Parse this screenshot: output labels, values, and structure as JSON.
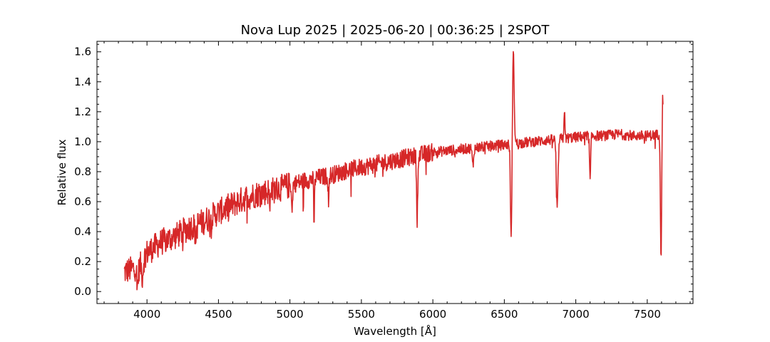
{
  "chart_data": {
    "type": "line",
    "title": "Nova Lup 2025 | 2025-06-20 | 00:36:25 | 2SPOT",
    "xlabel": "Wavelength [Å]",
    "ylabel": "Relative flux",
    "xlim": [
      3650,
      7820
    ],
    "ylim": [
      -0.08,
      1.67
    ],
    "x_ticks": [
      4000,
      4500,
      5000,
      5500,
      6000,
      6500,
      7000,
      7500
    ],
    "x_tick_labels": [
      "4000",
      "4500",
      "5000",
      "5500",
      "6000",
      "6500",
      "7000",
      "7500"
    ],
    "y_ticks": [
      0.0,
      0.2,
      0.4,
      0.6,
      0.8,
      1.0,
      1.2,
      1.4,
      1.6
    ],
    "y_tick_labels": [
      "0.0",
      "0.2",
      "0.4",
      "0.6",
      "0.8",
      "1.0",
      "1.2",
      "1.4",
      "1.6"
    ],
    "x_minor_step": 100,
    "y_minor_step": 0.05,
    "ticks_direction": "in",
    "ticks_on_all_sides": true,
    "grid": false,
    "legend": "none",
    "line_color": "#d62728",
    "series": [
      {
        "x_range": [
          3840,
          7610
        ],
        "continuum": [
          [
            3840,
            0.13
          ],
          [
            3950,
            0.17
          ],
          [
            4000,
            0.26
          ],
          [
            4100,
            0.33
          ],
          [
            4200,
            0.37
          ],
          [
            4300,
            0.43
          ],
          [
            4400,
            0.47
          ],
          [
            4500,
            0.53
          ],
          [
            4600,
            0.58
          ],
          [
            4700,
            0.63
          ],
          [
            4800,
            0.66
          ],
          [
            4900,
            0.68
          ],
          [
            5000,
            0.71
          ],
          [
            5100,
            0.74
          ],
          [
            5200,
            0.76
          ],
          [
            5300,
            0.78
          ],
          [
            5400,
            0.81
          ],
          [
            5500,
            0.83
          ],
          [
            5600,
            0.85
          ],
          [
            5700,
            0.87
          ],
          [
            5800,
            0.89
          ],
          [
            5900,
            0.91
          ],
          [
            6000,
            0.93
          ],
          [
            6100,
            0.94
          ],
          [
            6200,
            0.95
          ],
          [
            6300,
            0.96
          ],
          [
            6400,
            0.97
          ],
          [
            6500,
            0.98
          ],
          [
            6600,
            0.99
          ],
          [
            6700,
            1.0
          ],
          [
            6800,
            1.01
          ],
          [
            6900,
            1.02
          ],
          [
            7000,
            1.03
          ],
          [
            7100,
            1.04
          ],
          [
            7200,
            1.04
          ],
          [
            7300,
            1.05
          ],
          [
            7400,
            1.04
          ],
          [
            7500,
            1.04
          ],
          [
            7600,
            1.05
          ]
        ],
        "features": [
          {
            "center": 3934,
            "depth": -0.12,
            "width": 5
          },
          {
            "center": 3968,
            "depth": -0.1,
            "width": 5
          },
          {
            "center": 4340,
            "depth": -0.1,
            "width": 4
          },
          {
            "center": 4861,
            "depth": -0.3,
            "width": 3
          },
          {
            "center": 4863,
            "depth": 0.2,
            "width": 3
          },
          {
            "center": 5015,
            "depth": -0.2,
            "width": 3
          },
          {
            "center": 5169,
            "depth": -0.3,
            "width": 3
          },
          {
            "center": 5270,
            "depth": -0.18,
            "width": 3
          },
          {
            "center": 5890,
            "depth": -0.42,
            "width": 4
          },
          {
            "center": 6280,
            "depth": -0.12,
            "width": 5
          },
          {
            "center": 6548,
            "depth": -0.66,
            "width": 5
          },
          {
            "center": 6563,
            "depth": 0.6,
            "width": 6
          },
          {
            "center": 6870,
            "depth": -0.46,
            "width": 6
          },
          {
            "center": 6920,
            "depth": 0.2,
            "width": 3
          },
          {
            "center": 7100,
            "depth": -0.3,
            "width": 4
          },
          {
            "center": 7596,
            "depth": -0.85,
            "width": 4
          },
          {
            "center": 7608,
            "depth": 0.28,
            "width": 3
          }
        ]
      }
    ]
  }
}
